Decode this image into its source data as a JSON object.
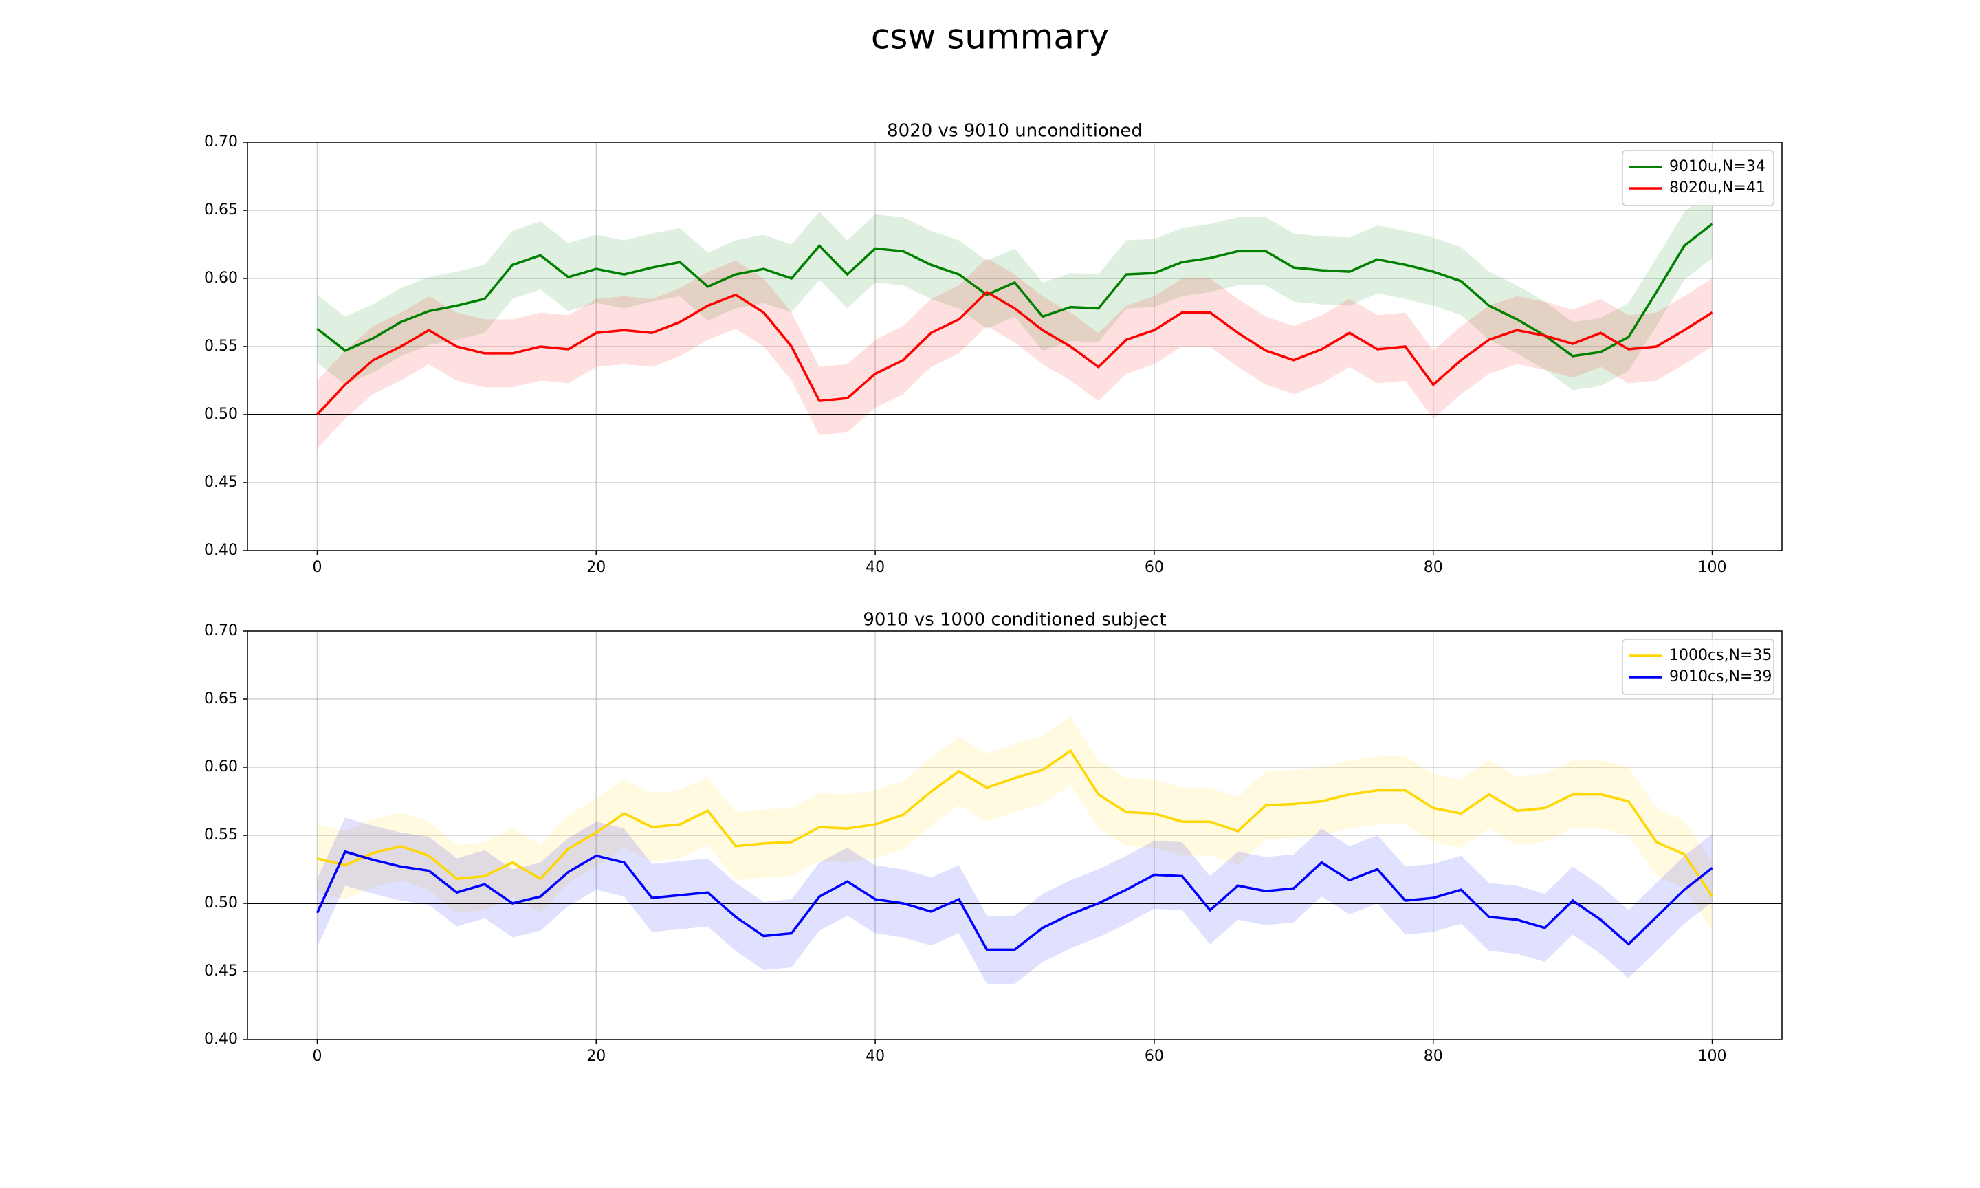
{
  "title": "csw summary",
  "chart_data": [
    {
      "type": "line",
      "title": "8020 vs 9010 unconditioned",
      "x": [
        0,
        2,
        4,
        6,
        8,
        10,
        12,
        14,
        16,
        18,
        20,
        22,
        24,
        26,
        28,
        30,
        32,
        34,
        36,
        38,
        40,
        42,
        44,
        46,
        48,
        50,
        52,
        54,
        56,
        58,
        60,
        62,
        64,
        66,
        68,
        70,
        72,
        74,
        76,
        78,
        80,
        82,
        84,
        86,
        88,
        90,
        92,
        94,
        96,
        98,
        100
      ],
      "series": [
        {
          "name": "9010u,N=34",
          "color": "#008000",
          "band": 0.025,
          "values": [
            0.563,
            0.547,
            0.556,
            0.568,
            0.576,
            0.58,
            0.585,
            0.61,
            0.617,
            0.601,
            0.607,
            0.603,
            0.608,
            0.612,
            0.594,
            0.603,
            0.607,
            0.6,
            0.624,
            0.603,
            0.622,
            0.62,
            0.61,
            0.603,
            0.588,
            0.597,
            0.572,
            0.579,
            0.578,
            0.603,
            0.604,
            0.612,
            0.615,
            0.62,
            0.62,
            0.608,
            0.606,
            0.605,
            0.614,
            0.61,
            0.605,
            0.598,
            0.58,
            0.57,
            0.558,
            0.543,
            0.546,
            0.557,
            0.59,
            0.624,
            0.64
          ]
        },
        {
          "name": "8020u,N=41",
          "color": "#ff0000",
          "band": 0.025,
          "values": [
            0.5,
            0.522,
            0.54,
            0.55,
            0.562,
            0.55,
            0.545,
            0.545,
            0.55,
            0.548,
            0.56,
            0.562,
            0.56,
            0.568,
            0.58,
            0.588,
            0.575,
            0.55,
            0.51,
            0.512,
            0.53,
            0.54,
            0.56,
            0.57,
            0.59,
            0.578,
            0.562,
            0.55,
            0.535,
            0.555,
            0.562,
            0.575,
            0.575,
            0.56,
            0.547,
            0.54,
            0.548,
            0.56,
            0.548,
            0.55,
            0.522,
            0.54,
            0.555,
            0.562,
            0.558,
            0.552,
            0.56,
            0.548,
            0.55,
            0.562,
            0.575
          ]
        }
      ],
      "xlim": [
        -5,
        105
      ],
      "ylim": [
        0.4,
        0.7
      ],
      "xticks": [
        0,
        20,
        40,
        60,
        80,
        100
      ],
      "yticks": [
        {
          "value": 0.4,
          "label": "0.40"
        },
        0.45,
        {
          "value": 0.5,
          "label": "0.50"
        },
        0.55,
        {
          "value": 0.6,
          "label": "0.60"
        },
        0.65,
        {
          "value": 0.7,
          "label": "0.70"
        }
      ],
      "hline": 0.5,
      "grid": true,
      "legend": "upper right"
    },
    {
      "type": "line",
      "title": "9010 vs 1000 conditioned subject",
      "x": [
        0,
        2,
        4,
        6,
        8,
        10,
        12,
        14,
        16,
        18,
        20,
        22,
        24,
        26,
        28,
        30,
        32,
        34,
        36,
        38,
        40,
        42,
        44,
        46,
        48,
        50,
        52,
        54,
        56,
        58,
        60,
        62,
        64,
        66,
        68,
        70,
        72,
        74,
        76,
        78,
        80,
        82,
        84,
        86,
        88,
        90,
        92,
        94,
        96,
        98,
        100
      ],
      "series": [
        {
          "name": "1000cs,N=35",
          "color": "#ffd700",
          "band": 0.025,
          "values": [
            0.533,
            0.528,
            0.537,
            0.542,
            0.535,
            0.518,
            0.52,
            0.53,
            0.518,
            0.54,
            0.552,
            0.566,
            0.556,
            0.558,
            0.568,
            0.542,
            0.544,
            0.545,
            0.556,
            0.555,
            0.558,
            0.565,
            0.582,
            0.597,
            0.585,
            0.592,
            0.598,
            0.612,
            0.58,
            0.567,
            0.566,
            0.56,
            0.56,
            0.553,
            0.572,
            0.573,
            0.575,
            0.58,
            0.583,
            0.583,
            0.57,
            0.566,
            0.58,
            0.568,
            0.57,
            0.58,
            0.58,
            0.575,
            0.545,
            0.536,
            0.505
          ]
        },
        {
          "name": "9010cs,N=39",
          "color": "#0000ff",
          "band": 0.025,
          "values": [
            0.493,
            0.538,
            0.532,
            0.527,
            0.524,
            0.508,
            0.514,
            0.5,
            0.505,
            0.523,
            0.535,
            0.53,
            0.504,
            0.506,
            0.508,
            0.49,
            0.476,
            0.478,
            0.505,
            0.516,
            0.503,
            0.5,
            0.494,
            0.503,
            0.466,
            0.466,
            0.482,
            0.492,
            0.5,
            0.51,
            0.521,
            0.52,
            0.495,
            0.513,
            0.509,
            0.511,
            0.53,
            0.517,
            0.525,
            0.502,
            0.504,
            0.51,
            0.49,
            0.488,
            0.482,
            0.502,
            0.488,
            0.47,
            0.49,
            0.51,
            0.526
          ]
        }
      ],
      "xlim": [
        -5,
        105
      ],
      "ylim": [
        0.4,
        0.7
      ],
      "xticks": [
        0,
        20,
        40,
        60,
        80,
        100
      ],
      "yticks": [
        {
          "value": 0.4,
          "label": "0.40"
        },
        0.45,
        {
          "value": 0.5,
          "label": "0.50"
        },
        0.55,
        {
          "value": 0.6,
          "label": "0.60"
        },
        0.65,
        {
          "value": 0.7,
          "label": "0.70"
        }
      ],
      "hline": 0.5,
      "grid": true,
      "legend": "upper right"
    }
  ]
}
